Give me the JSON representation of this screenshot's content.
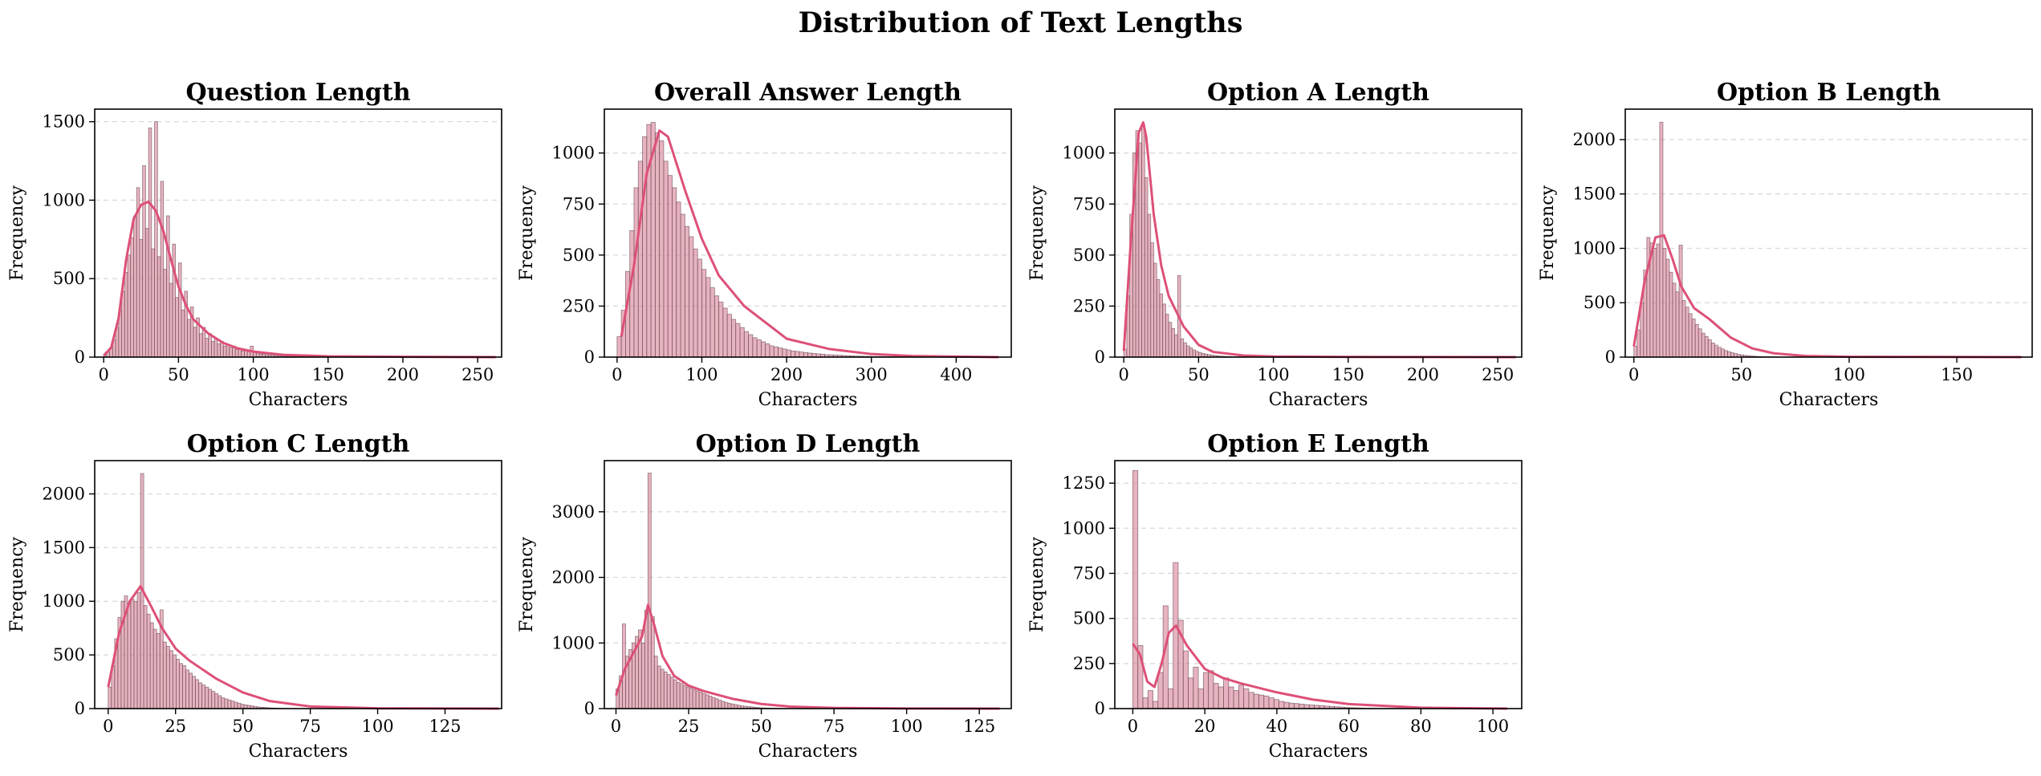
{
  "figure": {
    "title": "Distribution of Text Lengths",
    "bar_color": "#d8849a",
    "bar_edge_color": "#6b4a52",
    "kde_color": "#dd5077"
  },
  "chart_data": [
    {
      "type": "bar",
      "title": "Question Length",
      "xlabel": "Characters",
      "ylabel": "Frequency",
      "xlim": [
        -6,
        266
      ],
      "ylim": [
        0,
        1580
      ],
      "xticks": [
        0,
        50,
        100,
        150,
        200,
        250
      ],
      "yticks": [
        0,
        500,
        1000,
        1500
      ],
      "grid": true,
      "bins": {
        "start": 0,
        "width": 2,
        "counts": [
          10,
          30,
          60,
          110,
          190,
          300,
          420,
          540,
          650,
          760,
          900,
          1080,
          750,
          1220,
          820,
          1460,
          690,
          1500,
          640,
          1120,
          560,
          900,
          470,
          720,
          380,
          600,
          300,
          420,
          240,
          320,
          190,
          250,
          150,
          190,
          120,
          150,
          100,
          120,
          85,
          100,
          70,
          80,
          60,
          70,
          50,
          55,
          40,
          45,
          35,
          70,
          30,
          25,
          20,
          18,
          15,
          14,
          12,
          10,
          9,
          8,
          7,
          6,
          5,
          5,
          4,
          4,
          3,
          3,
          2,
          2,
          2,
          2,
          1,
          1,
          1,
          1,
          1,
          1,
          1,
          1,
          1,
          1,
          1,
          1,
          1,
          1,
          1,
          1,
          1,
          1,
          1,
          1,
          1,
          1,
          1,
          1,
          1,
          1,
          1,
          1,
          1,
          1,
          1,
          1,
          1,
          1,
          1,
          1,
          1,
          1,
          1,
          1,
          1,
          1,
          1,
          1,
          1,
          1,
          1,
          1,
          1,
          1,
          1,
          1,
          1,
          1,
          1,
          1,
          1,
          1,
          1
        ]
      },
      "kde": {
        "x": [
          0,
          5,
          10,
          15,
          20,
          25,
          30,
          35,
          40,
          45,
          50,
          55,
          60,
          70,
          80,
          90,
          100,
          120,
          150,
          200,
          262
        ],
        "y": [
          10,
          60,
          250,
          620,
          880,
          970,
          990,
          930,
          800,
          620,
          450,
          330,
          240,
          150,
          90,
          55,
          35,
          15,
          5,
          2,
          0
        ]
      }
    },
    {
      "type": "bar",
      "title": "Overall Answer Length",
      "xlabel": "Characters",
      "ylabel": "Frequency",
      "xlim": [
        -15,
        465
      ],
      "ylim": [
        0,
        1215
      ],
      "xticks": [
        0,
        100,
        200,
        300,
        400
      ],
      "yticks": [
        0,
        250,
        500,
        750,
        1000
      ],
      "grid": true,
      "bins": {
        "start": 0,
        "width": 5,
        "counts": [
          100,
          230,
          420,
          620,
          830,
          960,
          1080,
          1140,
          1150,
          1100,
          1060,
          960,
          890,
          830,
          760,
          700,
          640,
          590,
          530,
          480,
          430,
          390,
          340,
          300,
          270,
          240,
          210,
          185,
          165,
          145,
          125,
          110,
          95,
          85,
          75,
          65,
          55,
          50,
          45,
          40,
          35,
          30,
          28,
          25,
          22,
          20,
          18,
          16,
          14,
          12,
          11,
          10,
          9,
          8,
          7,
          6,
          5,
          5,
          4,
          4,
          3,
          3,
          3,
          2,
          2,
          2,
          2,
          1,
          1,
          1,
          1,
          1,
          1,
          1,
          1,
          1,
          1,
          1,
          1,
          1,
          1,
          1,
          1,
          1,
          1,
          1,
          1,
          1,
          1,
          1,
          1
        ]
      },
      "kde": {
        "x": [
          5,
          20,
          35,
          50,
          60,
          80,
          100,
          120,
          150,
          200,
          250,
          300,
          350,
          450
        ],
        "y": [
          100,
          450,
          900,
          1110,
          1080,
          820,
          580,
          400,
          250,
          90,
          40,
          15,
          5,
          0
        ]
      }
    },
    {
      "type": "bar",
      "title": "Option A Length",
      "xlabel": "Characters",
      "ylabel": "Frequency",
      "xlim": [
        -6,
        266
      ],
      "ylim": [
        0,
        1215
      ],
      "xticks": [
        0,
        50,
        100,
        150,
        200,
        250
      ],
      "yticks": [
        0,
        250,
        500,
        750,
        1000
      ],
      "grid": true,
      "bins": {
        "start": 0,
        "width": 2,
        "counts": [
          40,
          300,
          700,
          1000,
          1110,
          1050,
          1140,
          880,
          700,
          560,
          460,
          380,
          310,
          260,
          210,
          170,
          140,
          110,
          400,
          90,
          70,
          55,
          45,
          35,
          28,
          22,
          18,
          15,
          12,
          10,
          8,
          6,
          5,
          4,
          3,
          3,
          2,
          2,
          2,
          1,
          1,
          1,
          1,
          1,
          1,
          1,
          1,
          1,
          1,
          1,
          1,
          1,
          1,
          1,
          1,
          1,
          1,
          1,
          1,
          1,
          1,
          1,
          1,
          1,
          1,
          1,
          1,
          1,
          1,
          1,
          1,
          1,
          1,
          1,
          1,
          1,
          1,
          1,
          1,
          1,
          1,
          1,
          1,
          1,
          1,
          1,
          1,
          1,
          1,
          1,
          1,
          1,
          1,
          1,
          1,
          1,
          1,
          1,
          1,
          1,
          1,
          1,
          1,
          1,
          1,
          1,
          1,
          1,
          1,
          1,
          1,
          1,
          1,
          1,
          1,
          1,
          1,
          1,
          1,
          1,
          1,
          1,
          1,
          1,
          1,
          1,
          1,
          1,
          1,
          1,
          1,
          1
        ]
      },
      "kde": {
        "x": [
          0,
          5,
          10,
          13,
          15,
          20,
          25,
          30,
          40,
          50,
          60,
          80,
          100,
          150,
          262
        ],
        "y": [
          30,
          600,
          1100,
          1150,
          1080,
          700,
          450,
          300,
          150,
          60,
          25,
          8,
          3,
          1,
          0
        ]
      }
    },
    {
      "type": "bar",
      "title": "Option B Length",
      "xlabel": "Characters",
      "ylabel": "Frequency",
      "xlim": [
        -4,
        185
      ],
      "ylim": [
        0,
        2280
      ],
      "xticks": [
        0,
        50,
        100,
        150
      ],
      "yticks": [
        0,
        500,
        1000,
        1500,
        2000
      ],
      "grid": true,
      "bins": {
        "start": 0,
        "width": 1.5,
        "counts": [
          100,
          250,
          500,
          800,
          1100,
          1050,
          1000,
          1040,
          2160,
          1000,
          900,
          780,
          680,
          600,
          1030,
          520,
          460,
          400,
          350,
          300,
          260,
          220,
          190,
          160,
          130,
          110,
          90,
          75,
          60,
          50,
          40,
          32,
          25,
          20,
          16,
          12,
          10,
          8,
          6,
          5,
          4,
          3,
          3,
          2,
          2,
          1,
          1,
          1,
          1,
          1,
          1,
          1,
          1,
          1,
          1,
          1,
          1,
          1,
          1,
          1,
          1,
          1,
          1,
          1,
          1,
          1,
          1,
          1,
          1,
          1,
          1,
          1,
          1,
          1,
          1,
          1,
          1,
          1,
          1,
          1,
          1,
          1,
          1,
          1,
          1,
          1,
          1,
          1,
          1,
          1,
          1,
          1,
          1,
          1,
          1,
          1,
          1,
          1,
          1,
          1,
          1,
          1,
          1,
          1,
          1,
          1,
          1,
          1,
          1,
          1,
          1,
          1,
          1,
          1,
          1,
          1,
          1,
          1,
          1,
          1
        ]
      },
      "kde": {
        "x": [
          0,
          5,
          10,
          14,
          18,
          22,
          28,
          35,
          45,
          55,
          65,
          80,
          100,
          180
        ],
        "y": [
          100,
          700,
          1100,
          1120,
          900,
          650,
          450,
          350,
          180,
          80,
          35,
          10,
          3,
          0
        ]
      }
    },
    {
      "type": "bar",
      "title": "Option C Length",
      "xlabel": "Characters",
      "ylabel": "Frequency",
      "xlim": [
        -5,
        146
      ],
      "ylim": [
        0,
        2310
      ],
      "xticks": [
        0,
        25,
        50,
        75,
        100,
        125
      ],
      "yticks": [
        0,
        500,
        1000,
        1500,
        2000
      ],
      "grid": true,
      "bins": {
        "start": 0,
        "width": 1.2,
        "counts": [
          200,
          400,
          650,
          850,
          1000,
          1050,
          980,
          1020,
          1000,
          1080,
          2190,
          960,
          880,
          800,
          740,
          700,
          920,
          620,
          580,
          540,
          500,
          460,
          420,
          400,
          360,
          330,
          300,
          270,
          240,
          220,
          200,
          180,
          160,
          140,
          120,
          100,
          90,
          80,
          70,
          60,
          50,
          40,
          35,
          30,
          25,
          20,
          15,
          12,
          10,
          8,
          6,
          5,
          4,
          3,
          2,
          2,
          1,
          1,
          1,
          1,
          1,
          1,
          1,
          1,
          1,
          1,
          1,
          1,
          1,
          1,
          1,
          1,
          1,
          1,
          1,
          1,
          1,
          1,
          1,
          1,
          1,
          1,
          1,
          1,
          1,
          1,
          1,
          1,
          1,
          1,
          1,
          1,
          1,
          1,
          1,
          1,
          1,
          1,
          1,
          1,
          1,
          1,
          1,
          1,
          1,
          1,
          1,
          1,
          1,
          1,
          1,
          1,
          1,
          1,
          1,
          1,
          1,
          1,
          1,
          1,
          1
        ]
      },
      "kde": {
        "x": [
          0,
          4,
          8,
          12,
          16,
          20,
          25,
          30,
          40,
          50,
          60,
          75,
          100,
          145
        ],
        "y": [
          200,
          700,
          1000,
          1140,
          950,
          750,
          560,
          450,
          280,
          150,
          70,
          20,
          3,
          0
        ]
      }
    },
    {
      "type": "bar",
      "title": "Option D Length",
      "xlabel": "Characters",
      "ylabel": "Frequency",
      "xlim": [
        -4,
        136
      ],
      "ylim": [
        0,
        3780
      ],
      "xticks": [
        0,
        25,
        50,
        75,
        100,
        125
      ],
      "yticks": [
        0,
        1000,
        2000,
        3000
      ],
      "grid": true,
      "bins": {
        "start": 0,
        "width": 1.1,
        "counts": [
          300,
          500,
          1290,
          800,
          900,
          1000,
          1100,
          1200,
          1000,
          1500,
          3590,
          1400,
          800,
          650,
          600,
          560,
          520,
          480,
          440,
          400,
          380,
          350,
          330,
          310,
          290,
          270,
          250,
          230,
          210,
          190,
          170,
          150,
          130,
          110,
          95,
          80,
          70,
          60,
          50,
          40,
          35,
          30,
          25,
          20,
          15,
          12,
          10,
          8,
          6,
          5,
          4,
          3,
          2,
          2,
          1,
          1,
          1,
          1,
          1,
          1,
          1,
          1,
          1,
          1,
          1,
          1,
          1,
          1,
          1,
          1,
          1,
          1,
          1,
          1,
          1,
          1,
          1,
          1,
          1,
          1,
          1,
          1,
          1,
          1,
          1,
          1,
          1,
          1,
          1,
          1,
          1,
          1,
          1,
          1,
          1,
          1,
          1,
          1,
          1,
          1,
          1,
          1,
          1,
          1,
          1,
          1,
          1,
          1,
          1,
          1,
          1,
          1,
          1,
          1,
          1,
          1,
          1,
          1,
          1
        ]
      },
      "kde": {
        "x": [
          0,
          3,
          6,
          9,
          11,
          13,
          16,
          20,
          25,
          30,
          40,
          50,
          60,
          75,
          100,
          132
        ],
        "y": [
          200,
          600,
          850,
          1100,
          1580,
          1300,
          800,
          500,
          350,
          270,
          150,
          70,
          30,
          10,
          2,
          0
        ]
      }
    },
    {
      "type": "bar",
      "title": "Option E Length",
      "xlabel": "Characters",
      "ylabel": "Frequency",
      "xlim": [
        -5,
        108
      ],
      "ylim": [
        0,
        1375
      ],
      "xticks": [
        0,
        20,
        40,
        60,
        80,
        100
      ],
      "yticks": [
        0,
        250,
        500,
        750,
        1000,
        1250
      ],
      "grid": true,
      "bins": {
        "start": 0,
        "width": 1.4,
        "counts": [
          1320,
          350,
          60,
          100,
          40,
          200,
          570,
          110,
          810,
          490,
          320,
          170,
          230,
          110,
          200,
          210,
          140,
          120,
          170,
          120,
          100,
          130,
          110,
          90,
          80,
          75,
          70,
          60,
          50,
          40,
          35,
          30,
          28,
          25,
          22,
          20,
          18,
          16,
          14,
          12,
          10,
          8,
          6,
          5,
          4,
          3,
          2,
          2,
          1,
          1,
          1,
          1,
          1,
          1,
          1,
          1,
          1,
          1,
          1,
          1,
          1,
          1,
          1,
          1,
          1,
          1,
          1,
          1,
          1,
          1,
          1,
          1,
          1,
          1
        ]
      },
      "kde": {
        "x": [
          0,
          2,
          4,
          6,
          8,
          10,
          12,
          15,
          20,
          25,
          30,
          40,
          50,
          60,
          80,
          104
        ],
        "y": [
          360,
          300,
          150,
          120,
          250,
          420,
          460,
          350,
          220,
          170,
          140,
          90,
          50,
          25,
          5,
          0
        ]
      }
    }
  ]
}
